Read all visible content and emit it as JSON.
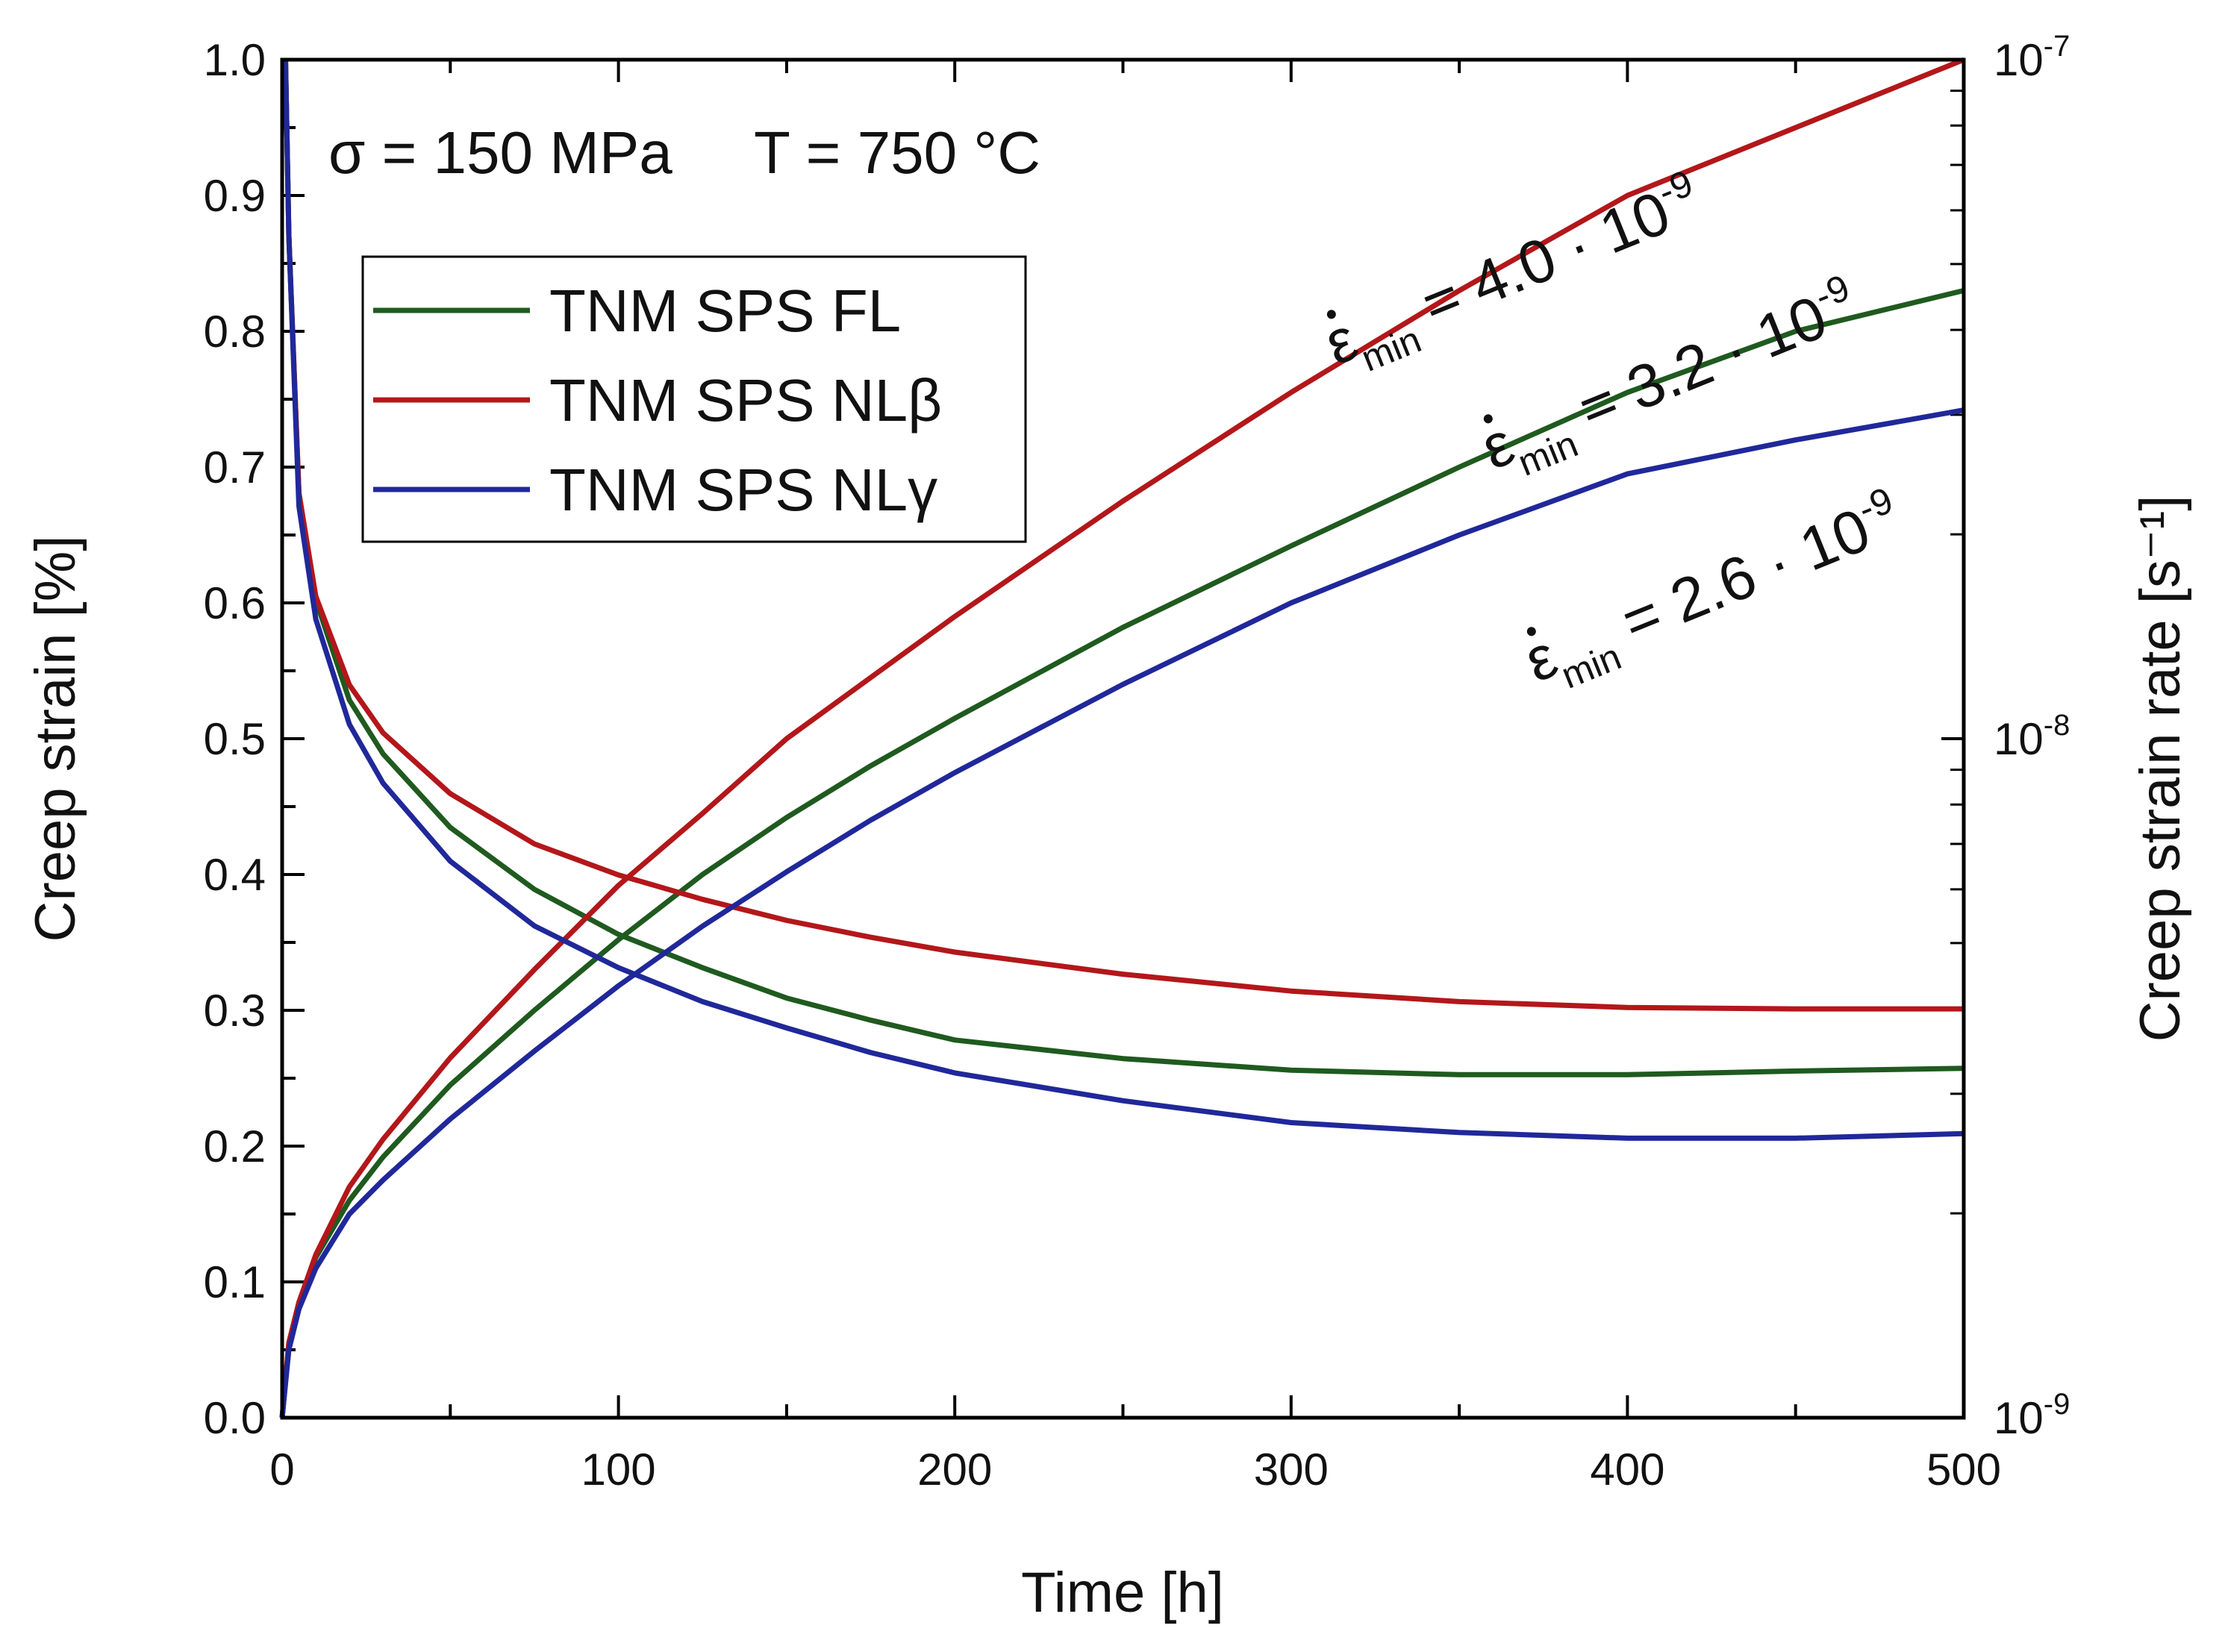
{
  "chart_data": {
    "type": "line",
    "title": "",
    "xlabel": "Time [h]",
    "ylabel": "Creep strain [%]",
    "y2label": "Creep strain rate [s⁻¹]",
    "xlim": [
      0,
      500
    ],
    "ylim": [
      0,
      1.0
    ],
    "y2lim": [
      1e-09,
      1e-07
    ],
    "y2scale": "log",
    "xticks": [
      "0",
      "100",
      "200",
      "300",
      "400",
      "500"
    ],
    "yticks": [
      "0.0",
      "0.1",
      "0.2",
      "0.3",
      "0.4",
      "0.5",
      "0.6",
      "0.7",
      "0.8",
      "0.9",
      "1.0"
    ],
    "y2ticks": [
      {
        "value": 1e-09,
        "base": "10",
        "exp": "-9"
      },
      {
        "value": 1e-08,
        "base": "10",
        "exp": "-8"
      },
      {
        "value": 1e-07,
        "base": "10",
        "exp": "-7"
      }
    ],
    "condition_label": {
      "sigma": "σ = 150 MPa",
      "temp": "T = 750 °C"
    },
    "legend_position": "upper-left",
    "series": [
      {
        "name": "TNM SPS FL",
        "color": "#1f5a1f",
        "strain_x": [
          0,
          2,
          5,
          10,
          20,
          30,
          50,
          75,
          100,
          125,
          150,
          175,
          200,
          250,
          300,
          350,
          400,
          450,
          500
        ],
        "strain_y": [
          0,
          0.055,
          0.085,
          0.118,
          0.16,
          0.192,
          0.245,
          0.3,
          0.352,
          0.4,
          0.442,
          0.48,
          0.515,
          0.582,
          0.642,
          0.7,
          0.755,
          0.8,
          0.83
        ],
        "rate_x": [
          1,
          2,
          5,
          10,
          20,
          30,
          50,
          75,
          100,
          125,
          150,
          175,
          200,
          250,
          300,
          350,
          400,
          450,
          500
        ],
        "rate_y": [
          1e-07,
          5.5e-08,
          2.3e-08,
          1.6e-08,
          1.14e-08,
          9.5e-09,
          7.4e-09,
          6e-09,
          5.15e-09,
          4.6e-09,
          4.15e-09,
          3.85e-09,
          3.6e-09,
          3.38e-09,
          3.25e-09,
          3.2e-09,
          3.2e-09,
          3.24e-09,
          3.27e-09
        ],
        "min_rate_label": {
          "prefix": "ε",
          "sub": "min",
          "text": "= 3.2 · 10",
          "exp": "-9"
        }
      },
      {
        "name": "TNM SPS NLβ",
        "color": "#b3171a",
        "strain_x": [
          0,
          2,
          5,
          10,
          20,
          30,
          50,
          75,
          100,
          125,
          150,
          175,
          200,
          250,
          300,
          350,
          400,
          450,
          500
        ],
        "strain_y": [
          0,
          0.055,
          0.085,
          0.12,
          0.17,
          0.205,
          0.265,
          0.33,
          0.392,
          0.445,
          0.5,
          0.545,
          0.59,
          0.675,
          0.755,
          0.83,
          0.9,
          0.95,
          1.0
        ],
        "rate_x": [
          1,
          2,
          5,
          10,
          20,
          30,
          50,
          75,
          100,
          125,
          150,
          175,
          200,
          250,
          300,
          350,
          400,
          450,
          500
        ],
        "rate_y": [
          1e-07,
          5.5e-08,
          2.3e-08,
          1.62e-08,
          1.2e-08,
          1.02e-08,
          8.3e-09,
          7e-09,
          6.3e-09,
          5.8e-09,
          5.4e-09,
          5.1e-09,
          4.85e-09,
          4.5e-09,
          4.25e-09,
          4.1e-09,
          4.02e-09,
          4e-09,
          4e-09
        ],
        "min_rate_label": {
          "prefix": "ε",
          "sub": "min",
          "text": "= 4.0 · 10",
          "exp": "-9"
        }
      },
      {
        "name": "TNM SPS NLγ",
        "color": "#20289a",
        "strain_x": [
          0,
          2,
          5,
          10,
          20,
          30,
          50,
          75,
          100,
          125,
          150,
          175,
          200,
          250,
          300,
          350,
          400,
          450,
          500
        ],
        "strain_y": [
          0,
          0.05,
          0.08,
          0.11,
          0.15,
          0.175,
          0.22,
          0.27,
          0.318,
          0.362,
          0.402,
          0.44,
          0.475,
          0.54,
          0.6,
          0.65,
          0.695,
          0.72,
          0.742
        ],
        "rate_x": [
          1,
          2,
          5,
          10,
          20,
          30,
          50,
          75,
          100,
          125,
          150,
          175,
          200,
          250,
          300,
          350,
          400,
          450,
          500
        ],
        "rate_y": [
          1e-07,
          5.5e-08,
          2.2e-08,
          1.5e-08,
          1.05e-08,
          8.6e-09,
          6.6e-09,
          5.3e-09,
          4.6e-09,
          4.1e-09,
          3.75e-09,
          3.45e-09,
          3.22e-09,
          2.93e-09,
          2.72e-09,
          2.63e-09,
          2.58e-09,
          2.58e-09,
          2.62e-09
        ],
        "min_rate_label": {
          "prefix": "ε",
          "sub": "min",
          "text": "= 2.6 · 10",
          "exp": "-9"
        }
      }
    ]
  }
}
